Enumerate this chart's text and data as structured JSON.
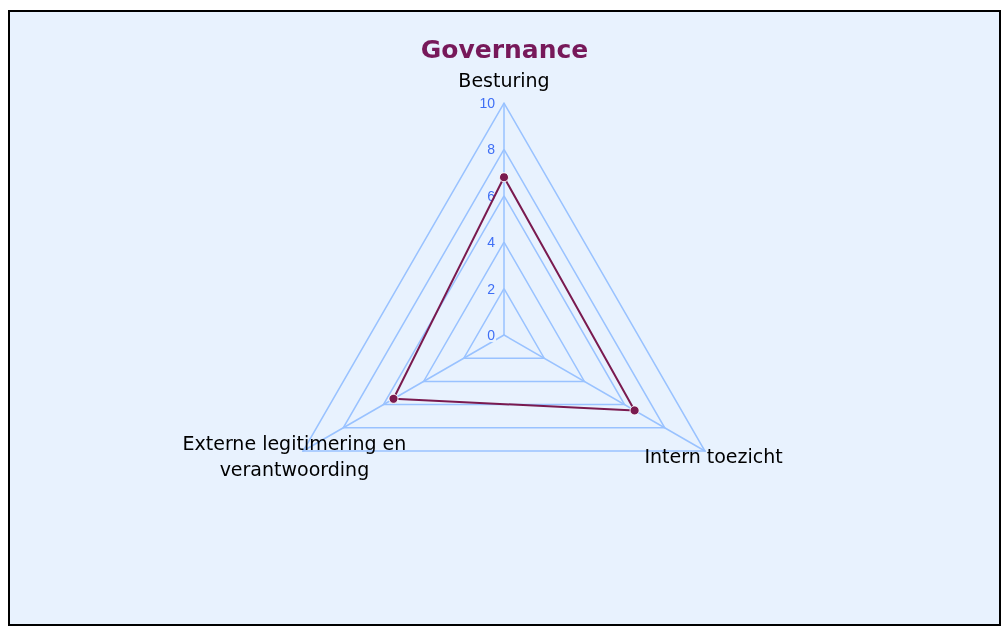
{
  "chart_data": {
    "type": "radar",
    "title": "Governance",
    "categories": [
      "Besturing",
      "Intern toezicht",
      "Externe legitimering en verantwoording"
    ],
    "series": [
      {
        "color": "#7a1a4f",
        "values": [
          6.8,
          6.5,
          5.5
        ]
      }
    ],
    "ylim": [
      0,
      10
    ],
    "yticks": [
      0,
      2,
      4,
      6,
      8,
      10
    ],
    "grid": true,
    "marker": "circle"
  }
}
